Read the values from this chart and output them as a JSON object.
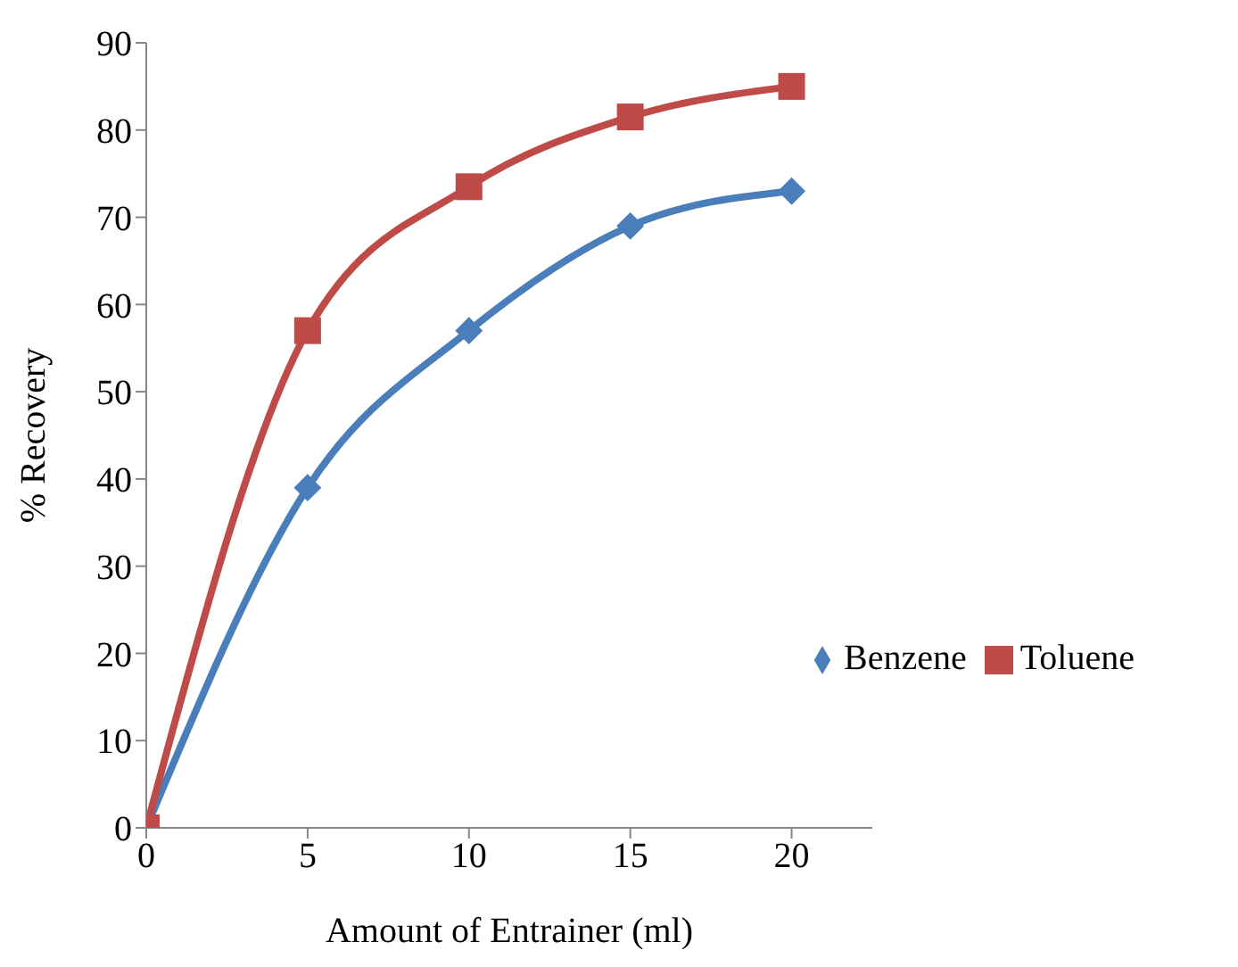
{
  "chart_data": {
    "type": "line",
    "xlabel": "Amount of Entrainer (ml)",
    "ylabel": "% Recovery",
    "x": [
      0,
      5,
      10,
      15,
      20
    ],
    "xlim": [
      0,
      22.5
    ],
    "xticks": [
      0,
      5,
      10,
      15,
      20
    ],
    "ylim": [
      0,
      90
    ],
    "yticks": [
      0,
      10,
      20,
      30,
      40,
      50,
      60,
      70,
      80,
      90
    ],
    "grid": false,
    "legend": "right",
    "line_style": "solid",
    "series": [
      {
        "name": "Benzene",
        "color": "#4a7ebb",
        "marker": "diamond",
        "values": [
          0,
          39,
          57,
          69,
          73
        ]
      },
      {
        "name": "Toluene",
        "color": "#be4b48",
        "marker": "square",
        "values": [
          0,
          57,
          73.5,
          81.5,
          85
        ]
      }
    ]
  }
}
